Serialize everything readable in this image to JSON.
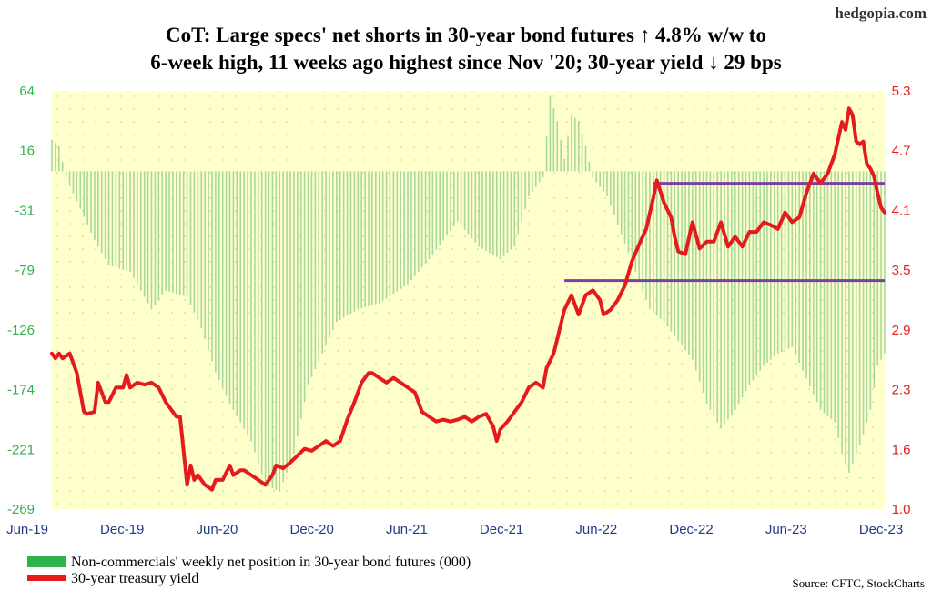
{
  "brand": "hedgopia.com",
  "title_line1": "CoT: Large specs' net shorts in 30-year bond futures ↑ 4.8% w/w to",
  "title_line2": "6-week high, 11 weeks ago highest since Nov '20; 30-year yield ↓ 29 bps",
  "source": "Source: CFTC, StockCharts",
  "colors": {
    "bars": "#a8d8a0",
    "bars_legend": "#2db34a",
    "yield": "#e41a1c",
    "hline": "#7a3fa0",
    "left_axis": "#2db34a",
    "right_axis": "#e0201b",
    "x_axis": "#1f3c88",
    "plot_bg": "#ffffcc",
    "grid_dots": "#d9d98c"
  },
  "chart_data": {
    "type": "bar",
    "y_left": {
      "ticks": [
        "64",
        "16",
        "-31",
        "-79",
        "-126",
        "-174",
        "-221",
        "-269"
      ],
      "range": [
        -269,
        64
      ]
    },
    "y_right": {
      "ticks": [
        "5.3",
        "4.7",
        "4.1",
        "3.5",
        "2.9",
        "2.3",
        "1.6",
        "1.0"
      ],
      "range": [
        1.0,
        5.3
      ]
    },
    "x_ticks": [
      "Jun-19",
      "Dec-19",
      "Jun-20",
      "Dec-20",
      "Jun-21",
      "Dec-21",
      "Jun-22",
      "Dec-22",
      "Jun-23",
      "Dec-23"
    ],
    "x_range_weeks": [
      0,
      234
    ],
    "series": [
      {
        "name": "Non-commercials' weekly net position in 30-year bond futures (000)",
        "type": "bar",
        "axis": "left",
        "points": [
          [
            0,
            25
          ],
          [
            2,
            20
          ],
          [
            4,
            -5
          ],
          [
            8,
            -30
          ],
          [
            12,
            -55
          ],
          [
            16,
            -75
          ],
          [
            22,
            -80
          ],
          [
            28,
            -110
          ],
          [
            32,
            -95
          ],
          [
            38,
            -100
          ],
          [
            42,
            -125
          ],
          [
            46,
            -160
          ],
          [
            50,
            -185
          ],
          [
            56,
            -215
          ],
          [
            60,
            -250
          ],
          [
            64,
            -255
          ],
          [
            68,
            -225
          ],
          [
            72,
            -170
          ],
          [
            80,
            -120
          ],
          [
            86,
            -110
          ],
          [
            92,
            -105
          ],
          [
            100,
            -90
          ],
          [
            106,
            -70
          ],
          [
            110,
            -55
          ],
          [
            114,
            -40
          ],
          [
            120,
            -60
          ],
          [
            126,
            -70
          ],
          [
            130,
            -60
          ],
          [
            134,
            -20
          ],
          [
            138,
            -5
          ],
          [
            140,
            60
          ],
          [
            142,
            40
          ],
          [
            144,
            10
          ],
          [
            146,
            45
          ],
          [
            148,
            40
          ],
          [
            150,
            20
          ],
          [
            152,
            -5
          ],
          [
            156,
            -20
          ],
          [
            160,
            -50
          ],
          [
            164,
            -80
          ],
          [
            168,
            -110
          ],
          [
            172,
            -120
          ],
          [
            176,
            -135
          ],
          [
            180,
            -150
          ],
          [
            184,
            -185
          ],
          [
            188,
            -205
          ],
          [
            192,
            -190
          ],
          [
            196,
            -170
          ],
          [
            200,
            -155
          ],
          [
            204,
            -145
          ],
          [
            208,
            -140
          ],
          [
            212,
            -165
          ],
          [
            216,
            -190
          ],
          [
            220,
            -200
          ],
          [
            222,
            -225
          ],
          [
            224,
            -240
          ],
          [
            228,
            -210
          ],
          [
            230,
            -190
          ],
          [
            232,
            -155
          ],
          [
            234,
            -145
          ]
        ]
      },
      {
        "name": "30-year treasury yield",
        "type": "line",
        "axis": "right",
        "points": [
          [
            0,
            2.6
          ],
          [
            1,
            2.55
          ],
          [
            2,
            2.6
          ],
          [
            3,
            2.55
          ],
          [
            5,
            2.6
          ],
          [
            7,
            2.4
          ],
          [
            9,
            2.0
          ],
          [
            10,
            1.98
          ],
          [
            12,
            2.0
          ],
          [
            13,
            2.3
          ],
          [
            15,
            2.1
          ],
          [
            16,
            2.1
          ],
          [
            18,
            2.25
          ],
          [
            20,
            2.25
          ],
          [
            21,
            2.38
          ],
          [
            22,
            2.25
          ],
          [
            24,
            2.3
          ],
          [
            26,
            2.28
          ],
          [
            28,
            2.3
          ],
          [
            30,
            2.25
          ],
          [
            32,
            2.1
          ],
          [
            33,
            2.05
          ],
          [
            35,
            1.95
          ],
          [
            36,
            1.95
          ],
          [
            38,
            1.25
          ],
          [
            39,
            1.45
          ],
          [
            40,
            1.3
          ],
          [
            41,
            1.35
          ],
          [
            43,
            1.25
          ],
          [
            45,
            1.2
          ],
          [
            46,
            1.3
          ],
          [
            48,
            1.3
          ],
          [
            50,
            1.45
          ],
          [
            51,
            1.35
          ],
          [
            53,
            1.4
          ],
          [
            54,
            1.4
          ],
          [
            56,
            1.35
          ],
          [
            58,
            1.3
          ],
          [
            60,
            1.25
          ],
          [
            62,
            1.35
          ],
          [
            63,
            1.45
          ],
          [
            65,
            1.42
          ],
          [
            67,
            1.48
          ],
          [
            69,
            1.55
          ],
          [
            71,
            1.62
          ],
          [
            73,
            1.6
          ],
          [
            75,
            1.65
          ],
          [
            77,
            1.7
          ],
          [
            79,
            1.65
          ],
          [
            81,
            1.7
          ],
          [
            83,
            1.92
          ],
          [
            85,
            2.1
          ],
          [
            87,
            2.3
          ],
          [
            89,
            2.4
          ],
          [
            90,
            2.4
          ],
          [
            92,
            2.35
          ],
          [
            94,
            2.3
          ],
          [
            96,
            2.35
          ],
          [
            98,
            2.3
          ],
          [
            100,
            2.25
          ],
          [
            102,
            2.2
          ],
          [
            104,
            2.0
          ],
          [
            106,
            1.95
          ],
          [
            108,
            1.9
          ],
          [
            110,
            1.92
          ],
          [
            112,
            1.9
          ],
          [
            114,
            1.92
          ],
          [
            116,
            1.95
          ],
          [
            118,
            1.9
          ],
          [
            120,
            1.95
          ],
          [
            122,
            1.98
          ],
          [
            124,
            1.85
          ],
          [
            125,
            1.7
          ],
          [
            126,
            1.82
          ],
          [
            128,
            1.9
          ],
          [
            130,
            2.0
          ],
          [
            132,
            2.1
          ],
          [
            134,
            2.25
          ],
          [
            136,
            2.3
          ],
          [
            138,
            2.25
          ],
          [
            139,
            2.45
          ],
          [
            141,
            2.6
          ],
          [
            142,
            2.75
          ],
          [
            144,
            3.05
          ],
          [
            146,
            3.2
          ],
          [
            148,
            3.0
          ],
          [
            150,
            3.2
          ],
          [
            152,
            3.25
          ],
          [
            154,
            3.15
          ],
          [
            155,
            3.0
          ],
          [
            157,
            3.05
          ],
          [
            159,
            3.15
          ],
          [
            161,
            3.3
          ],
          [
            163,
            3.55
          ],
          [
            165,
            3.72
          ],
          [
            167,
            3.88
          ],
          [
            169,
            4.2
          ],
          [
            170,
            4.38
          ],
          [
            172,
            4.15
          ],
          [
            174,
            4.0
          ],
          [
            175,
            3.8
          ],
          [
            176,
            3.65
          ],
          [
            178,
            3.62
          ],
          [
            180,
            3.95
          ],
          [
            182,
            3.68
          ],
          [
            184,
            3.75
          ],
          [
            186,
            3.75
          ],
          [
            188,
            3.95
          ],
          [
            190,
            3.7
          ],
          [
            192,
            3.8
          ],
          [
            194,
            3.7
          ],
          [
            196,
            3.85
          ],
          [
            198,
            3.85
          ],
          [
            200,
            3.95
          ],
          [
            202,
            3.92
          ],
          [
            204,
            3.88
          ],
          [
            206,
            4.05
          ],
          [
            208,
            3.95
          ],
          [
            210,
            4.0
          ],
          [
            212,
            4.25
          ],
          [
            214,
            4.45
          ],
          [
            216,
            4.35
          ],
          [
            218,
            4.45
          ],
          [
            220,
            4.65
          ],
          [
            222,
            4.98
          ],
          [
            223,
            4.9
          ],
          [
            224,
            5.12
          ],
          [
            225,
            5.05
          ],
          [
            226,
            4.78
          ],
          [
            227,
            4.75
          ],
          [
            228,
            4.78
          ],
          [
            229,
            4.55
          ],
          [
            230,
            4.5
          ],
          [
            231,
            4.42
          ],
          [
            232,
            4.25
          ],
          [
            233,
            4.1
          ],
          [
            234,
            4.05
          ]
        ]
      }
    ],
    "hlines": [
      {
        "axis": "right",
        "value": 4.35,
        "x_from": 169,
        "x_to": 234
      },
      {
        "axis": "right",
        "value": 3.35,
        "x_from": 144,
        "x_to": 234
      }
    ],
    "legend": {
      "position": "bottom-left",
      "entries": [
        "Non-commercials' weekly net position in 30-year bond futures (000)",
        "30-year treasury yield"
      ]
    }
  }
}
